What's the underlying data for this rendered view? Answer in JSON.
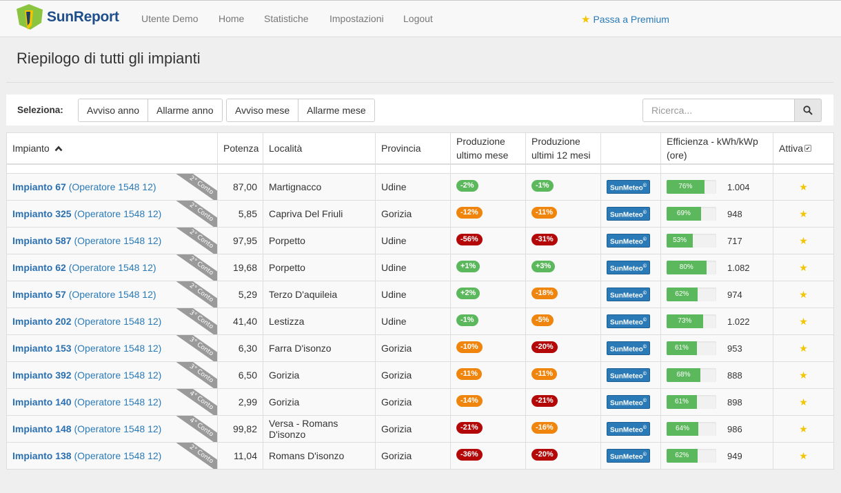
{
  "brand": {
    "name": "SunReport"
  },
  "nav": {
    "items": [
      "Utente Demo",
      "Home",
      "Statistiche",
      "Impostazioni",
      "Logout"
    ],
    "premium": "Passa a Premium"
  },
  "page": {
    "title": "Riepilogo di tutti gli impianti"
  },
  "toolbar": {
    "label": "Seleziona:",
    "buttons": [
      "Avviso anno",
      "Allarme anno",
      "Avviso mese",
      "Allarme mese"
    ],
    "search_placeholder": "Ricerca..."
  },
  "table": {
    "headers": {
      "impianto": "Impianto",
      "potenza": "Potenza",
      "localita": "Località",
      "provincia": "Provincia",
      "prod_mese": "Produzione ultimo mese",
      "prod_12": "Produzione ultimi 12 mesi",
      "meteo": "",
      "efficienza": "Efficienza - kWh/kWp (ore)",
      "attiva": "Attiva"
    },
    "meteo_label": "SunMeteo",
    "colors": {
      "green": "#5cb85c",
      "orange": "#f0850d",
      "red": "#b40808"
    },
    "rows": [
      {
        "name": "Impianto 67",
        "operator": "(Operatore 1548 12)",
        "ribbon": "2° Conto",
        "potenza": "87,00",
        "localita": "Martignacco",
        "provincia": "Udine",
        "mese": "-2%",
        "mese_c": "green",
        "anno": "-1%",
        "anno_c": "green",
        "eff_pct": 76,
        "eff_label": "76%",
        "eff_val": "1.004"
      },
      {
        "name": "Impianto 325",
        "operator": "(Operatore 1548 12)",
        "ribbon": "2° Conto",
        "potenza": "5,85",
        "localita": "Capriva Del Friuli",
        "provincia": "Gorizia",
        "mese": "-12%",
        "mese_c": "orange",
        "anno": "-11%",
        "anno_c": "orange",
        "eff_pct": 69,
        "eff_label": "69%",
        "eff_val": "948"
      },
      {
        "name": "Impianto 587",
        "operator": "(Operatore 1548 12)",
        "ribbon": "2° Conto",
        "potenza": "97,95",
        "localita": "Porpetto",
        "provincia": "Udine",
        "mese": "-56%",
        "mese_c": "red",
        "anno": "-31%",
        "anno_c": "red",
        "eff_pct": 53,
        "eff_label": "53%",
        "eff_val": "717"
      },
      {
        "name": "Impianto 62",
        "operator": "(Operatore 1548 12)",
        "ribbon": "2° Conto",
        "potenza": "19,68",
        "localita": "Porpetto",
        "provincia": "Udine",
        "mese": "+1%",
        "mese_c": "green",
        "anno": "+3%",
        "anno_c": "green",
        "eff_pct": 80,
        "eff_label": "80%",
        "eff_val": "1.082"
      },
      {
        "name": "Impianto 57",
        "operator": "(Operatore 1548 12)",
        "ribbon": "2° Conto",
        "potenza": "5,29",
        "localita": "Terzo D'aquileia",
        "provincia": "Udine",
        "mese": "+2%",
        "mese_c": "green",
        "anno": "-18%",
        "anno_c": "orange",
        "eff_pct": 62,
        "eff_label": "62%",
        "eff_val": "974"
      },
      {
        "name": "Impianto 202",
        "operator": "(Operatore 1548 12)",
        "ribbon": "3° Conto",
        "potenza": "41,40",
        "localita": "Lestizza",
        "provincia": "Udine",
        "mese": "-1%",
        "mese_c": "green",
        "anno": "-5%",
        "anno_c": "orange",
        "eff_pct": 73,
        "eff_label": "73%",
        "eff_val": "1.022"
      },
      {
        "name": "Impianto 153",
        "operator": "(Operatore 1548 12)",
        "ribbon": "3° Conto",
        "potenza": "6,30",
        "localita": "Farra D'isonzo",
        "provincia": "Gorizia",
        "mese": "-10%",
        "mese_c": "orange",
        "anno": "-20%",
        "anno_c": "red",
        "eff_pct": 61,
        "eff_label": "61%",
        "eff_val": "953"
      },
      {
        "name": "Impianto 392",
        "operator": "(Operatore 1548 12)",
        "ribbon": "3° Conto",
        "potenza": "6,50",
        "localita": "Gorizia",
        "provincia": "Gorizia",
        "mese": "-11%",
        "mese_c": "orange",
        "anno": "-11%",
        "anno_c": "orange",
        "eff_pct": 68,
        "eff_label": "68%",
        "eff_val": "888"
      },
      {
        "name": "Impianto 140",
        "operator": "(Operatore 1548 12)",
        "ribbon": "4° Conto",
        "potenza": "2,99",
        "localita": "Gorizia",
        "provincia": "Gorizia",
        "mese": "-14%",
        "mese_c": "orange",
        "anno": "-21%",
        "anno_c": "red",
        "eff_pct": 61,
        "eff_label": "61%",
        "eff_val": "898"
      },
      {
        "name": "Impianto 148",
        "operator": "(Operatore 1548 12)",
        "ribbon": "4° Conto",
        "potenza": "99,82",
        "localita": "Versa - Romans D'isonzo",
        "provincia": "Gorizia",
        "mese": "-21%",
        "mese_c": "red",
        "anno": "-16%",
        "anno_c": "orange",
        "eff_pct": 64,
        "eff_label": "64%",
        "eff_val": "986"
      },
      {
        "name": "Impianto 138",
        "operator": "(Operatore 1548 12)",
        "ribbon": "2° Conto",
        "potenza": "11,04",
        "localita": "Romans D'isonzo",
        "provincia": "Gorizia",
        "mese": "-36%",
        "mese_c": "red",
        "anno": "-20%",
        "anno_c": "red",
        "eff_pct": 62,
        "eff_label": "62%",
        "eff_val": "949"
      }
    ]
  }
}
